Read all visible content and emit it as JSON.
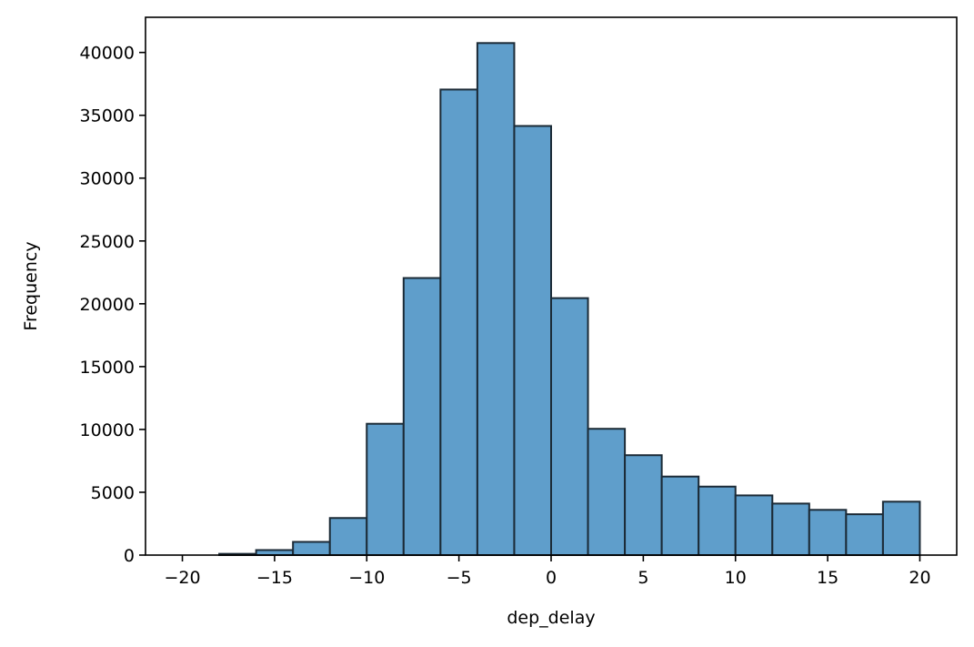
{
  "chart_data": {
    "type": "bar",
    "xlabel": "dep_delay",
    "ylabel": "Frequency",
    "xlim": [
      -22,
      22
    ],
    "ylim": [
      0,
      42800
    ],
    "bin_edges": [
      -20,
      -18,
      -16,
      -14,
      -12,
      -10,
      -8,
      -6,
      -4,
      -2,
      0,
      2,
      4,
      6,
      8,
      10,
      12,
      14,
      16,
      18,
      20
    ],
    "values": [
      0,
      100,
      400,
      1050,
      2950,
      10450,
      22050,
      37050,
      40750,
      34150,
      20450,
      10050,
      7950,
      6250,
      5450,
      4750,
      4100,
      3600,
      3250,
      4250
    ],
    "x_ticks": [
      {
        "value": -20,
        "label": "−20"
      },
      {
        "value": -15,
        "label": "−15"
      },
      {
        "value": -10,
        "label": "−10"
      },
      {
        "value": -5,
        "label": "−5"
      },
      {
        "value": 0,
        "label": "0"
      },
      {
        "value": 5,
        "label": "5"
      },
      {
        "value": 10,
        "label": "10"
      },
      {
        "value": 15,
        "label": "15"
      },
      {
        "value": 20,
        "label": "20"
      }
    ],
    "y_ticks": [
      {
        "value": 0,
        "label": "0"
      },
      {
        "value": 5000,
        "label": "5000"
      },
      {
        "value": 10000,
        "label": "10000"
      },
      {
        "value": 15000,
        "label": "15000"
      },
      {
        "value": 20000,
        "label": "20000"
      },
      {
        "value": 25000,
        "label": "25000"
      },
      {
        "value": 30000,
        "label": "30000"
      },
      {
        "value": 35000,
        "label": "35000"
      },
      {
        "value": 40000,
        "label": "40000"
      }
    ],
    "bar_color": "#5f9ecb",
    "edge_color": "#1b2a36",
    "grid": false
  }
}
